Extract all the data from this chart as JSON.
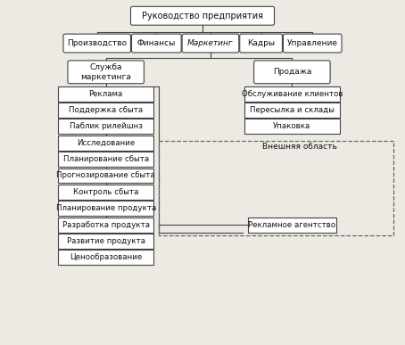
{
  "bg_color": "#ede9e3",
  "box_color": "#ffffff",
  "box_edge": "#444444",
  "text_color": "#111111",
  "top_node": "Руководство предприятия",
  "level1_nodes": [
    "Производство",
    "Финансы",
    "Маркетинг",
    "Кадры",
    "Управление"
  ],
  "marketing_italic": "Маркетинг",
  "level2_left": "Служба\nмаркетинга",
  "level2_right": "Продажа",
  "left_items": [
    "Реклама",
    "Поддержка сбыта",
    "Паблик рилейшнз",
    "Исследование",
    "Планирование сбыта",
    "Прогнозирование сбыта",
    "Контроль сбыта",
    "Планирование продукта",
    "Разработка продукта",
    "Развитие продукта",
    "Ценообразование"
  ],
  "right_items": [
    "Обслуживание клиентов",
    "Пересылка и склады",
    "Упаковка"
  ],
  "external_label": "Внешняя область",
  "agency_label": "Рекламное агентство",
  "figsize": [
    4.54,
    3.87
  ],
  "dpi": 100
}
